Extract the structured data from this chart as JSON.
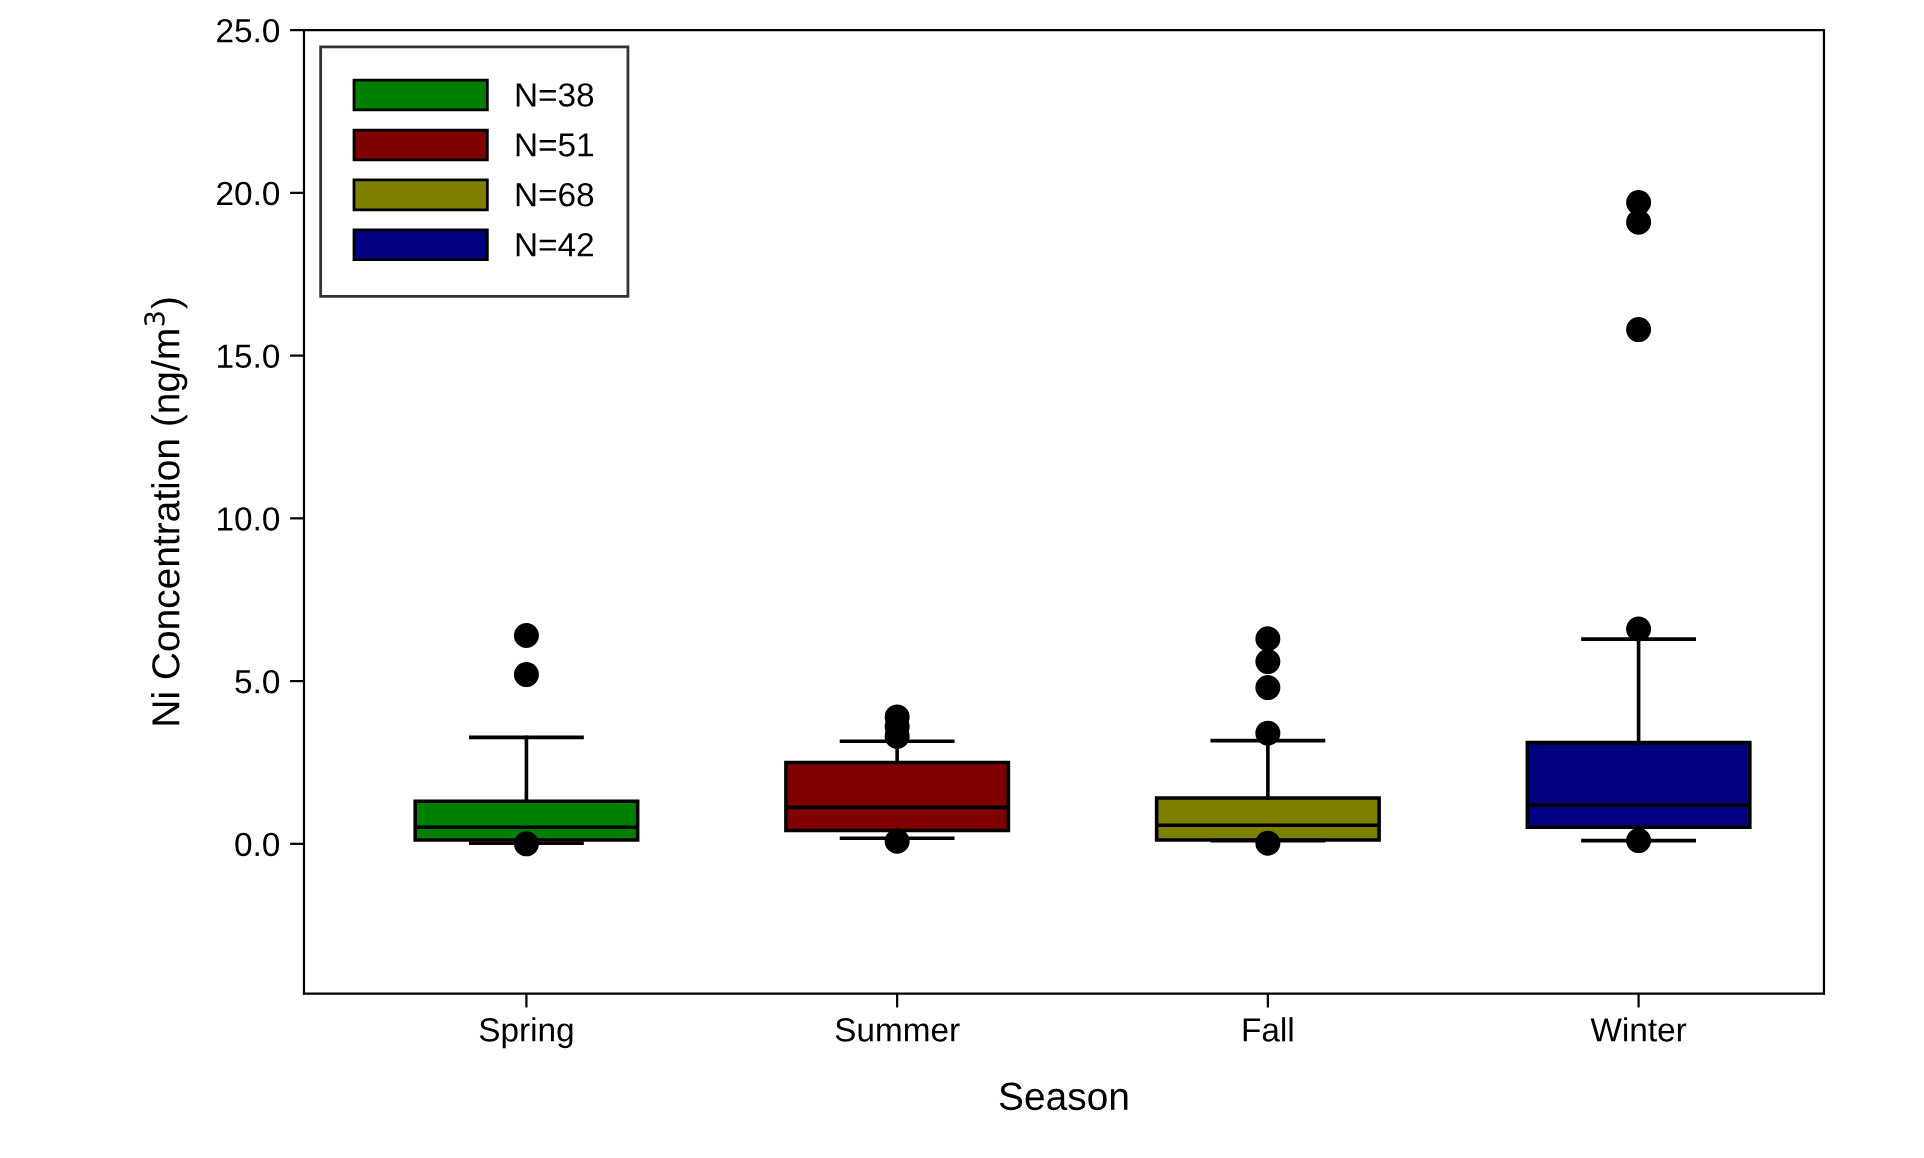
{
  "chart_data": {
    "type": "box",
    "xlabel": "Season",
    "ylabel": "Ni Concentration (ng/m$^{3}$)",
    "categories": [
      "Spring",
      "Summer",
      "Fall",
      "Winter"
    ],
    "ylim": [
      -4.6,
      25
    ],
    "yticks": [
      {
        "value": 0,
        "label": "0.0"
      },
      {
        "value": 5,
        "label": "5.0"
      },
      {
        "value": 10,
        "label": "10.0"
      },
      {
        "value": 15,
        "label": "15.0"
      },
      {
        "value": 20,
        "label": "20.0"
      },
      {
        "value": 25,
        "label": "25.0"
      }
    ],
    "grid": false,
    "legend": "top left",
    "series": [
      {
        "name": "N=38",
        "color": "#008000",
        "boxes": [
          {
            "low": 0.02,
            "q1": 0.12,
            "median": 0.51,
            "q3": 1.31,
            "high": 3.27,
            "outliers": [
              0.0,
              5.2,
              6.4
            ]
          },
          null,
          null,
          null
        ]
      },
      {
        "name": "N=51",
        "color": "#800000",
        "boxes": [
          null,
          {
            "low": 0.17,
            "q1": 0.41,
            "median": 1.12,
            "q3": 2.5,
            "high": 3.15,
            "outliers": [
              0.08,
              3.3,
              3.6,
              3.9
            ]
          },
          null,
          null
        ]
      },
      {
        "name": "N=68",
        "color": "#808000",
        "boxes": [
          null,
          null,
          {
            "low": 0.1,
            "q1": 0.12,
            "median": 0.57,
            "q3": 1.41,
            "high": 3.17,
            "outliers": [
              0.02,
              3.4,
              4.8,
              5.6,
              6.3
            ]
          },
          null
        ]
      },
      {
        "name": "N=42",
        "color": "#000080",
        "boxes": [
          null,
          null,
          null,
          {
            "low": 0.1,
            "q1": 0.51,
            "median": 1.19,
            "q3": 3.11,
            "high": 6.29,
            "outliers": [
              0.1,
              6.6,
              15.8,
              19.1,
              19.7
            ]
          }
        ]
      }
    ]
  }
}
